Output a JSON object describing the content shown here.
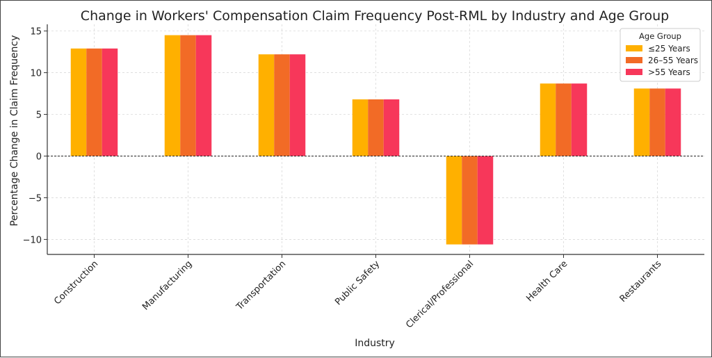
{
  "chart_data": {
    "type": "bar",
    "title": "Change in Workers' Compensation Claim Frequency Post-RML by Industry and Age Group",
    "xlabel": "Industry",
    "ylabel": "Percentage Change in Claim Frequency",
    "categories": [
      "Construction",
      "Manufacturing",
      "Transportation",
      "Public Safety",
      "Clerical/Professional",
      "Health Care",
      "Restaurants"
    ],
    "series": [
      {
        "name": "≤25 Years",
        "color": "#ffb000",
        "values": [
          12.9,
          14.5,
          12.2,
          6.8,
          -10.6,
          8.7,
          8.1
        ]
      },
      {
        "name": "26–55 Years",
        "color": "#f26b26",
        "values": [
          12.9,
          14.5,
          12.2,
          6.8,
          -10.6,
          8.7,
          8.1
        ]
      },
      {
        "name": ">55 Years",
        "color": "#f7375a",
        "values": [
          12.9,
          14.5,
          12.2,
          6.8,
          -10.6,
          8.7,
          8.1
        ]
      }
    ],
    "ylim": [
      -11.8,
      15.8
    ],
    "yticks": [
      -10,
      -5,
      0,
      5,
      10,
      15
    ],
    "ytick_labels": [
      "−10",
      "−5",
      "0",
      "5",
      "10",
      "15"
    ],
    "grid": true,
    "zero_line": true,
    "legend": {
      "title": "Age Group",
      "placement": "top-right"
    }
  }
}
